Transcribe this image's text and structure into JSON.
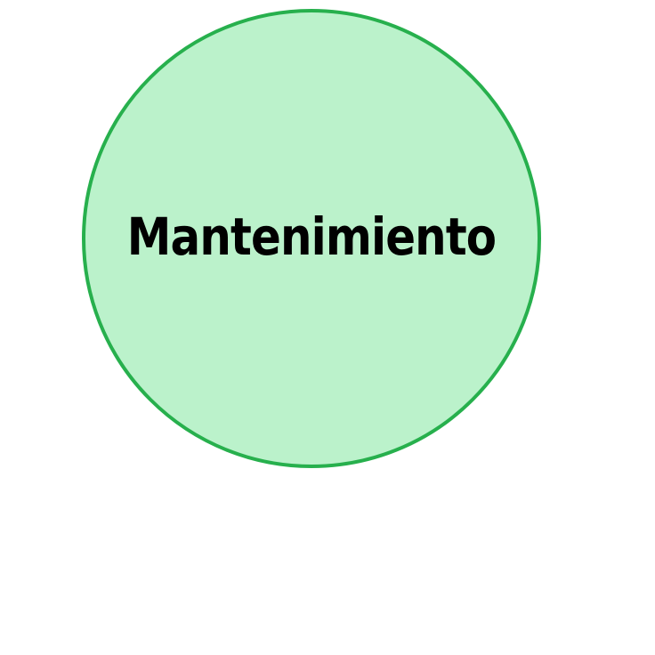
{
  "node": {
    "label": "Mantenimiento",
    "fill_color": "#bbf2cb",
    "border_color": "#27b04d",
    "text_color": "#000000"
  }
}
